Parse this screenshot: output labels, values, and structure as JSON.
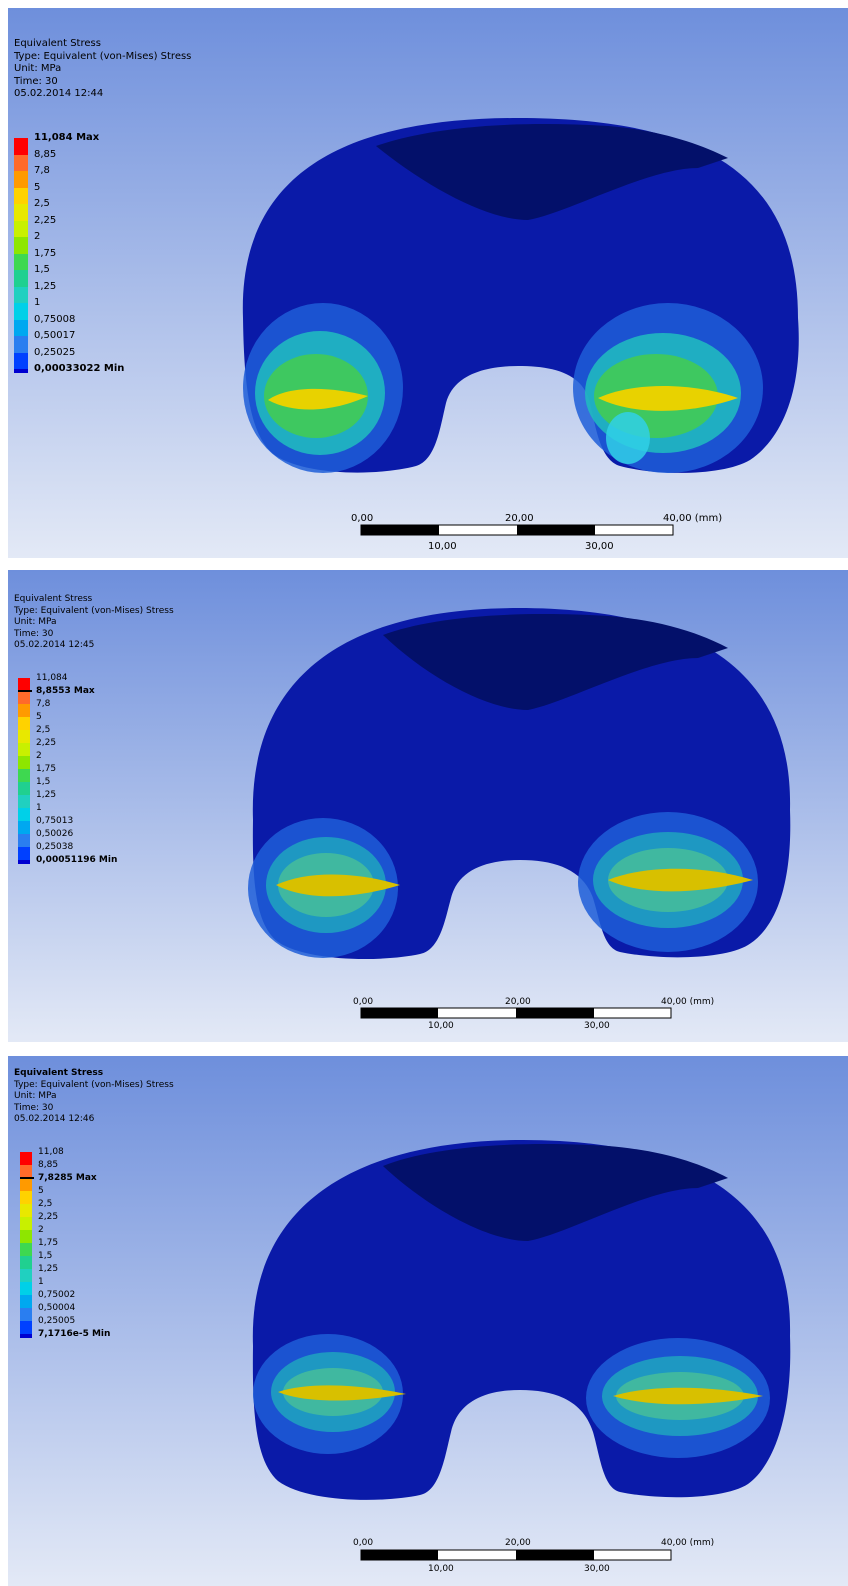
{
  "panels": [
    {
      "title": "Equivalent Stress",
      "type": "Type: Equivalent (von-Mises) Stress",
      "unit": "Unit: MPa",
      "time": "Time: 30",
      "date": "05.02.2014 12:44",
      "legend": [
        "11,084 Max",
        "8,85",
        "7,8",
        "5",
        "2,5",
        "2,25",
        "2",
        "1,75",
        "1,5",
        "1,25",
        "1",
        "0,75008",
        "0,50017",
        "0,25025",
        "0,00033022 Min"
      ],
      "scale": {
        "s0": "0,00",
        "s20": "20,00",
        "s40": "40,00 (mm)",
        "s10": "10,00",
        "s30": "30,00"
      }
    },
    {
      "title": "Equivalent Stress",
      "type": "Type: Equivalent (von-Mises) Stress",
      "unit": "Unit: MPa",
      "time": "Time: 30",
      "date": "05.02.2014 12:45",
      "legend": [
        "11,084",
        "8,8553 Max",
        "7,8",
        "5",
        "2,5",
        "2,25",
        "2",
        "1,75",
        "1,5",
        "1,25",
        "1",
        "0,75013",
        "0,50026",
        "0,25038",
        "0,00051196 Min"
      ],
      "scale": {
        "s0": "0,00",
        "s20": "20,00",
        "s40": "40,00 (mm)",
        "s10": "10,00",
        "s30": "30,00"
      }
    },
    {
      "title": "Equivalent Stress",
      "type": "Type: Equivalent (von-Mises) Stress",
      "unit": "Unit: MPa",
      "time": "Time: 30",
      "date": "05.02.2014 12:46",
      "legend": [
        "11,08",
        "8,85",
        "7,8285 Max",
        "5",
        "2,5",
        "2,25",
        "2",
        "1,75",
        "1,5",
        "1,25",
        "1",
        "0,75002",
        "0,50004",
        "0,25005",
        "7,1716e-5 Min"
      ],
      "scale": {
        "s0": "0,00",
        "s20": "20,00",
        "s40": "40,00 (mm)",
        "s10": "10,00",
        "s30": "30,00"
      }
    }
  ],
  "colors": {
    "legend": [
      "#ff0000",
      "#ff6a2a",
      "#ff9a00",
      "#ffd200",
      "#e8e800",
      "#c8f000",
      "#8ee600",
      "#3ed850",
      "#20d090",
      "#20d0c0",
      "#00d0e8",
      "#00a8f0",
      "#2a7ef0",
      "#0040ff",
      "#0000d0"
    ],
    "bg_top": "#6e8fdc",
    "bg_bottom": "#e3e9f6",
    "body": "#0a1aa8",
    "body_dark": "#03106a"
  }
}
